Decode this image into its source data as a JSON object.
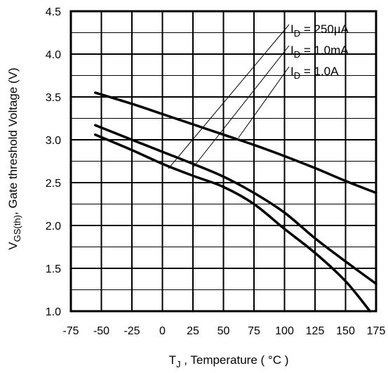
{
  "chart_data": {
    "type": "line",
    "xlabel_main": "T",
    "xlabel_sub": "J",
    "xlabel_rest": " , Temperature ( °C )",
    "ylabel_main": "V",
    "ylabel_sub": "GS(th)",
    "ylabel_rest": ", Gate threshold Voltage (V)",
    "xlim": [
      -75,
      175
    ],
    "ylim": [
      1.0,
      4.5
    ],
    "x_ticks": [
      "-75",
      "-50",
      "-25",
      "0",
      "25",
      "50",
      "75",
      "100",
      "125",
      "150",
      "175"
    ],
    "y_ticks": [
      "1.0",
      "1.5",
      "2.0",
      "2.5",
      "3.0",
      "3.5",
      "4.0",
      "4.5"
    ],
    "grid": true,
    "series": [
      {
        "name_main": "I",
        "name_sub": "D",
        "name_rest": " = 250µA",
        "x": [
          -55,
          -25,
          0,
          25,
          50,
          75,
          100,
          125,
          150,
          175
        ],
        "y": [
          3.55,
          3.42,
          3.3,
          3.18,
          3.06,
          2.94,
          2.81,
          2.67,
          2.52,
          2.38
        ]
      },
      {
        "name_main": "I",
        "name_sub": "D",
        "name_rest": " = 1.0mA",
        "x": [
          -55,
          -25,
          0,
          25,
          50,
          75,
          100,
          125,
          150,
          175
        ],
        "y": [
          3.17,
          3.0,
          2.86,
          2.72,
          2.57,
          2.38,
          2.15,
          1.85,
          1.58,
          1.32
        ]
      },
      {
        "name_main": "I",
        "name_sub": "D",
        "name_rest": " = 1.0A",
        "x": [
          -55,
          -25,
          0,
          25,
          50,
          75,
          100,
          125,
          150,
          170
        ],
        "y": [
          3.06,
          2.88,
          2.72,
          2.58,
          2.45,
          2.25,
          1.96,
          1.68,
          1.35,
          1.0
        ]
      }
    ]
  }
}
